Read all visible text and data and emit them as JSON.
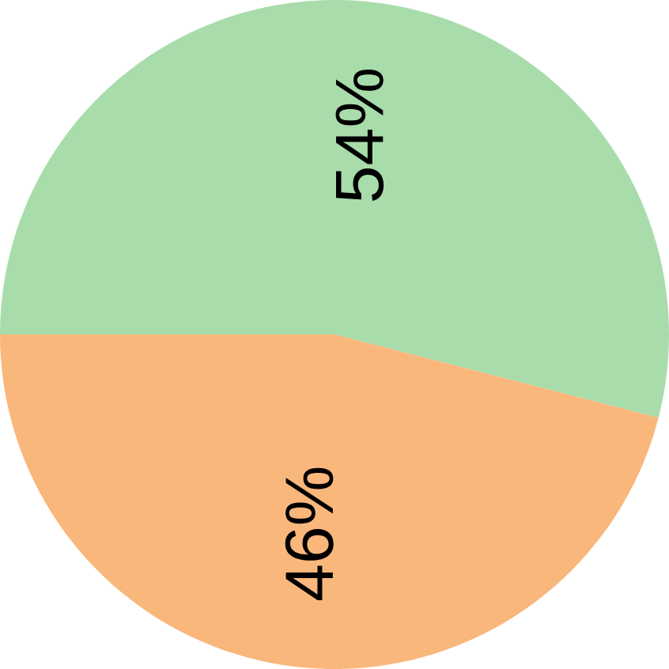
{
  "chart_data": {
    "type": "pie",
    "categories": [
      null,
      null
    ],
    "values": [
      54,
      46
    ],
    "value_labels": [
      "54%",
      "46%"
    ],
    "colors": [
      "#a9dcab",
      "#f9b77c"
    ]
  }
}
